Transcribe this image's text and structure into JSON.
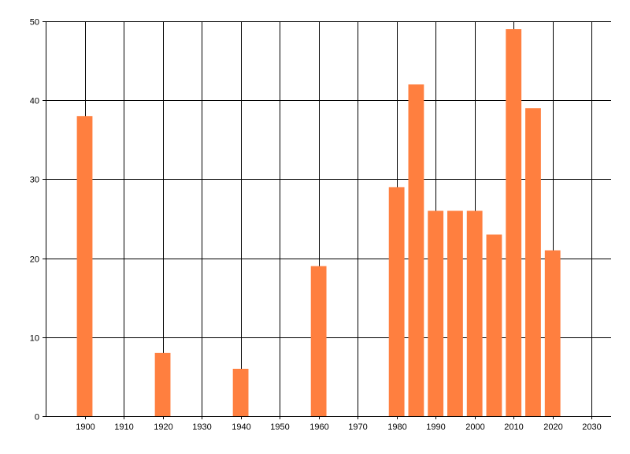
{
  "chart_data": {
    "type": "bar",
    "title": "",
    "xlabel": "",
    "ylabel": "",
    "x": [
      1900,
      1920,
      1940,
      1960,
      1980,
      1985,
      1990,
      1995,
      2000,
      2005,
      2010,
      2015,
      2020
    ],
    "values": [
      38,
      8,
      6,
      19,
      29,
      42,
      26,
      26,
      26,
      23,
      49,
      39,
      21
    ],
    "xlim": [
      1890,
      2035
    ],
    "ylim": [
      0,
      50
    ],
    "xticks": [
      1900,
      1910,
      1920,
      1930,
      1940,
      1950,
      1960,
      1970,
      1980,
      1990,
      2000,
      2010,
      2020,
      2030
    ],
    "yticks": [
      0,
      10,
      20,
      30,
      40,
      50
    ],
    "grid": true,
    "legend": "none",
    "bar_color": "#FF7F3F",
    "grid_color": "#000000"
  }
}
